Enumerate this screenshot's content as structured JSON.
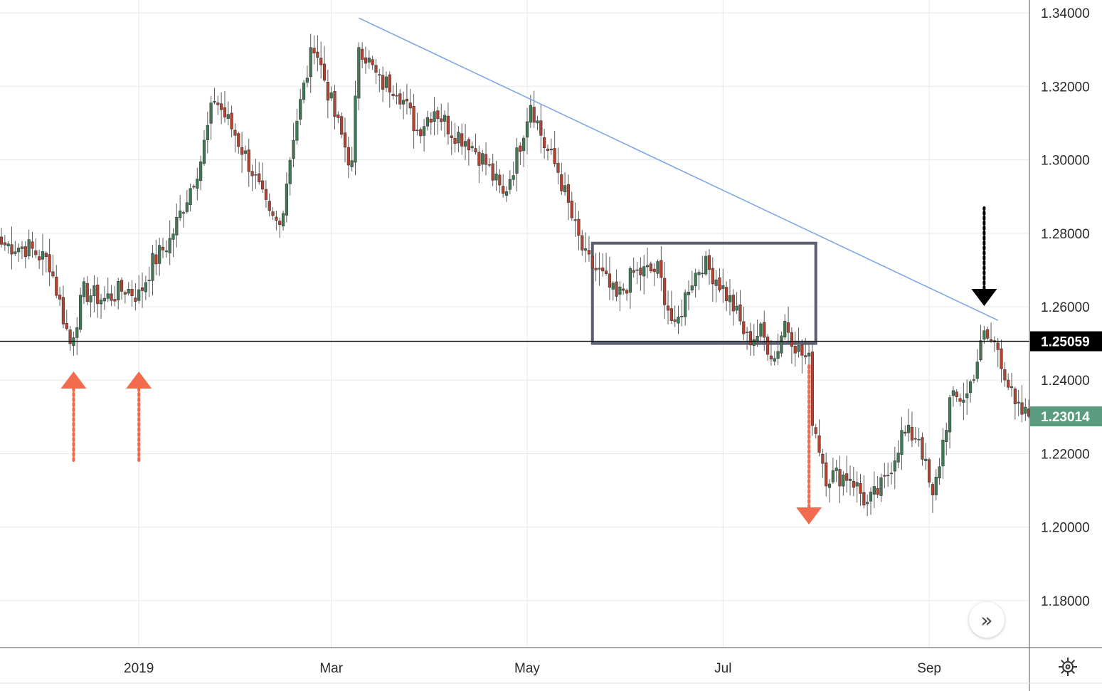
{
  "chart_data": {
    "type": "candlestick",
    "instrument": "",
    "y_ticks": [
      "1.34000",
      "1.32000",
      "1.30000",
      "1.28000",
      "1.26000",
      "1.24000",
      "1.22000",
      "1.20000",
      "1.18000"
    ],
    "x_ticks": [
      "2019",
      "Mar",
      "May",
      "Jul",
      "Sep"
    ],
    "ylim": [
      1.1672,
      1.3435
    ],
    "grid": true,
    "price_line": {
      "value": 1.25059,
      "label": "1.25059",
      "color": "#000000"
    },
    "last_price": {
      "value": 1.23014,
      "label": "1.23014",
      "color": "#5b9c80"
    },
    "up_color": "#3f7a55",
    "down_color": "#b8402f",
    "trendline": {
      "from": {
        "index": 104,
        "price": 1.3386
      },
      "to": {
        "index": 290,
        "price": 1.2563
      },
      "color": "#7ea8e8"
    },
    "range_box": {
      "from_index": 172,
      "to_index": 237,
      "top": 1.2773,
      "bottom": 1.25,
      "color": "#5c5e73"
    },
    "annotations": [
      {
        "kind": "arrow-up",
        "index": 21,
        "color": "#f26b4f"
      },
      {
        "kind": "arrow-up",
        "index": 40,
        "color": "#f26b4f"
      },
      {
        "kind": "arrow-down",
        "index": 235,
        "color": "#f26b4f"
      },
      {
        "kind": "arrow-down",
        "index": 286,
        "color": "#000000"
      }
    ],
    "waypoints": [
      [
        0,
        1.277
      ],
      [
        8,
        1.276
      ],
      [
        14,
        1.272
      ],
      [
        20,
        1.25
      ],
      [
        24,
        1.264
      ],
      [
        30,
        1.262
      ],
      [
        36,
        1.265
      ],
      [
        40,
        1.263
      ],
      [
        44,
        1.272
      ],
      [
        49,
        1.278
      ],
      [
        54,
        1.29
      ],
      [
        58,
        1.3
      ],
      [
        62,
        1.317
      ],
      [
        68,
        1.307
      ],
      [
        73,
        1.297
      ],
      [
        78,
        1.284
      ],
      [
        81,
        1.282
      ],
      [
        85,
        1.307
      ],
      [
        91,
        1.332
      ],
      [
        97,
        1.312
      ],
      [
        102,
        1.298
      ],
      [
        104,
        1.332
      ],
      [
        110,
        1.321
      ],
      [
        115,
        1.32
      ],
      [
        121,
        1.308
      ],
      [
        126,
        1.314
      ],
      [
        131,
        1.308
      ],
      [
        136,
        1.305
      ],
      [
        141,
        1.299
      ],
      [
        146,
        1.29
      ],
      [
        150,
        1.301
      ],
      [
        154,
        1.316
      ],
      [
        158,
        1.304
      ],
      [
        162,
        1.297
      ],
      [
        167,
        1.281
      ],
      [
        170,
        1.273
      ],
      [
        175,
        1.268
      ],
      [
        179,
        1.262
      ],
      [
        184,
        1.269
      ],
      [
        191,
        1.27
      ],
      [
        196,
        1.253
      ],
      [
        200,
        1.266
      ],
      [
        204,
        1.272
      ],
      [
        208,
        1.268
      ],
      [
        213,
        1.26
      ],
      [
        217,
        1.251
      ],
      [
        221,
        1.253
      ],
      [
        225,
        1.246
      ],
      [
        228,
        1.256
      ],
      [
        232,
        1.248
      ],
      [
        235,
        1.245
      ],
      [
        236,
        1.23
      ],
      [
        240,
        1.214
      ],
      [
        247,
        1.214
      ],
      [
        252,
        1.206
      ],
      [
        257,
        1.212
      ],
      [
        262,
        1.225
      ],
      [
        267,
        1.225
      ],
      [
        271,
        1.207
      ],
      [
        276,
        1.234
      ],
      [
        281,
        1.236
      ],
      [
        286,
        1.252
      ],
      [
        290,
        1.249
      ],
      [
        295,
        1.232
      ],
      [
        299,
        1.23
      ]
    ]
  },
  "ui": {
    "nav_button_glyph": "»",
    "settings_icon": "gear-icon"
  }
}
